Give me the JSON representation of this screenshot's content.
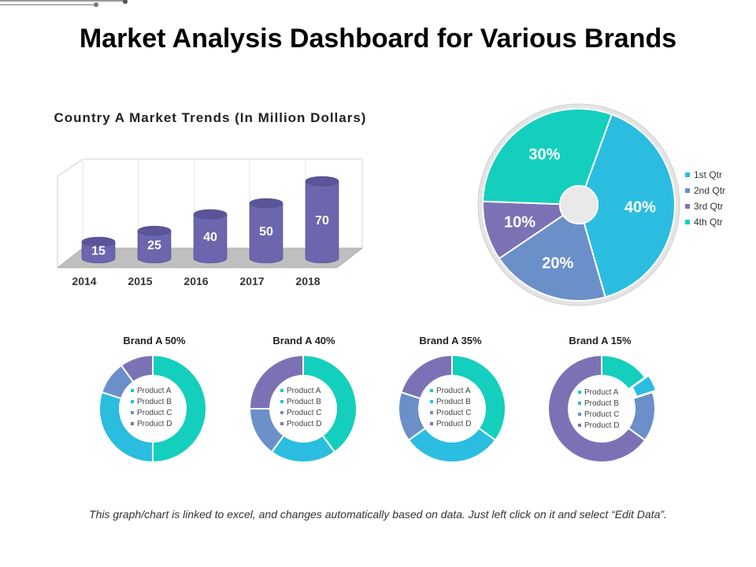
{
  "page": {
    "title": "Market Analysis Dashboard for Various Brands",
    "footnote": "This graph/chart is linked to excel, and changes automatically based on data. Just left click on it and select “Edit Data”."
  },
  "colors": {
    "q1": "#2bbde0",
    "q2": "#6b8fc9",
    "q3": "#7b72b5",
    "q4": "#14cfbd",
    "bar": "#6b66ad"
  },
  "chart_data": [
    {
      "type": "bar",
      "title": "Country A Market Trends (In Million Dollars)",
      "categories": [
        "2014",
        "2015",
        "2016",
        "2017",
        "2018"
      ],
      "values": [
        15,
        25,
        40,
        50,
        70
      ],
      "ylim": [
        0,
        80
      ],
      "grid": false
    },
    {
      "type": "pie",
      "labels": [
        "1st Qtr",
        "2nd Qtr",
        "3rd Qtr",
        "4th Qtr"
      ],
      "values": [
        40,
        20,
        10,
        30
      ],
      "value_labels": [
        "40%",
        "20%",
        "10%",
        "30%"
      ],
      "legend": "right"
    },
    {
      "type": "pie",
      "title": "Brand A  50%",
      "labels": [
        "Product A",
        "Product B",
        "Product C",
        "Product D"
      ],
      "values": [
        50,
        30,
        10,
        10
      ]
    },
    {
      "type": "pie",
      "title": "Brand A  40%",
      "labels": [
        "Product A",
        "Product B",
        "Product C",
        "Product D"
      ],
      "values": [
        40,
        20,
        15,
        25
      ]
    },
    {
      "type": "pie",
      "title": "Brand A  35%",
      "labels": [
        "Product A",
        "Product B",
        "Product C",
        "Product D"
      ],
      "values": [
        35,
        30,
        15,
        20
      ]
    },
    {
      "type": "pie",
      "title": "Brand A  15%",
      "labels": [
        "Product A",
        "Product B",
        "Product C",
        "Product D"
      ],
      "values": [
        15,
        5,
        15,
        65
      ]
    }
  ]
}
